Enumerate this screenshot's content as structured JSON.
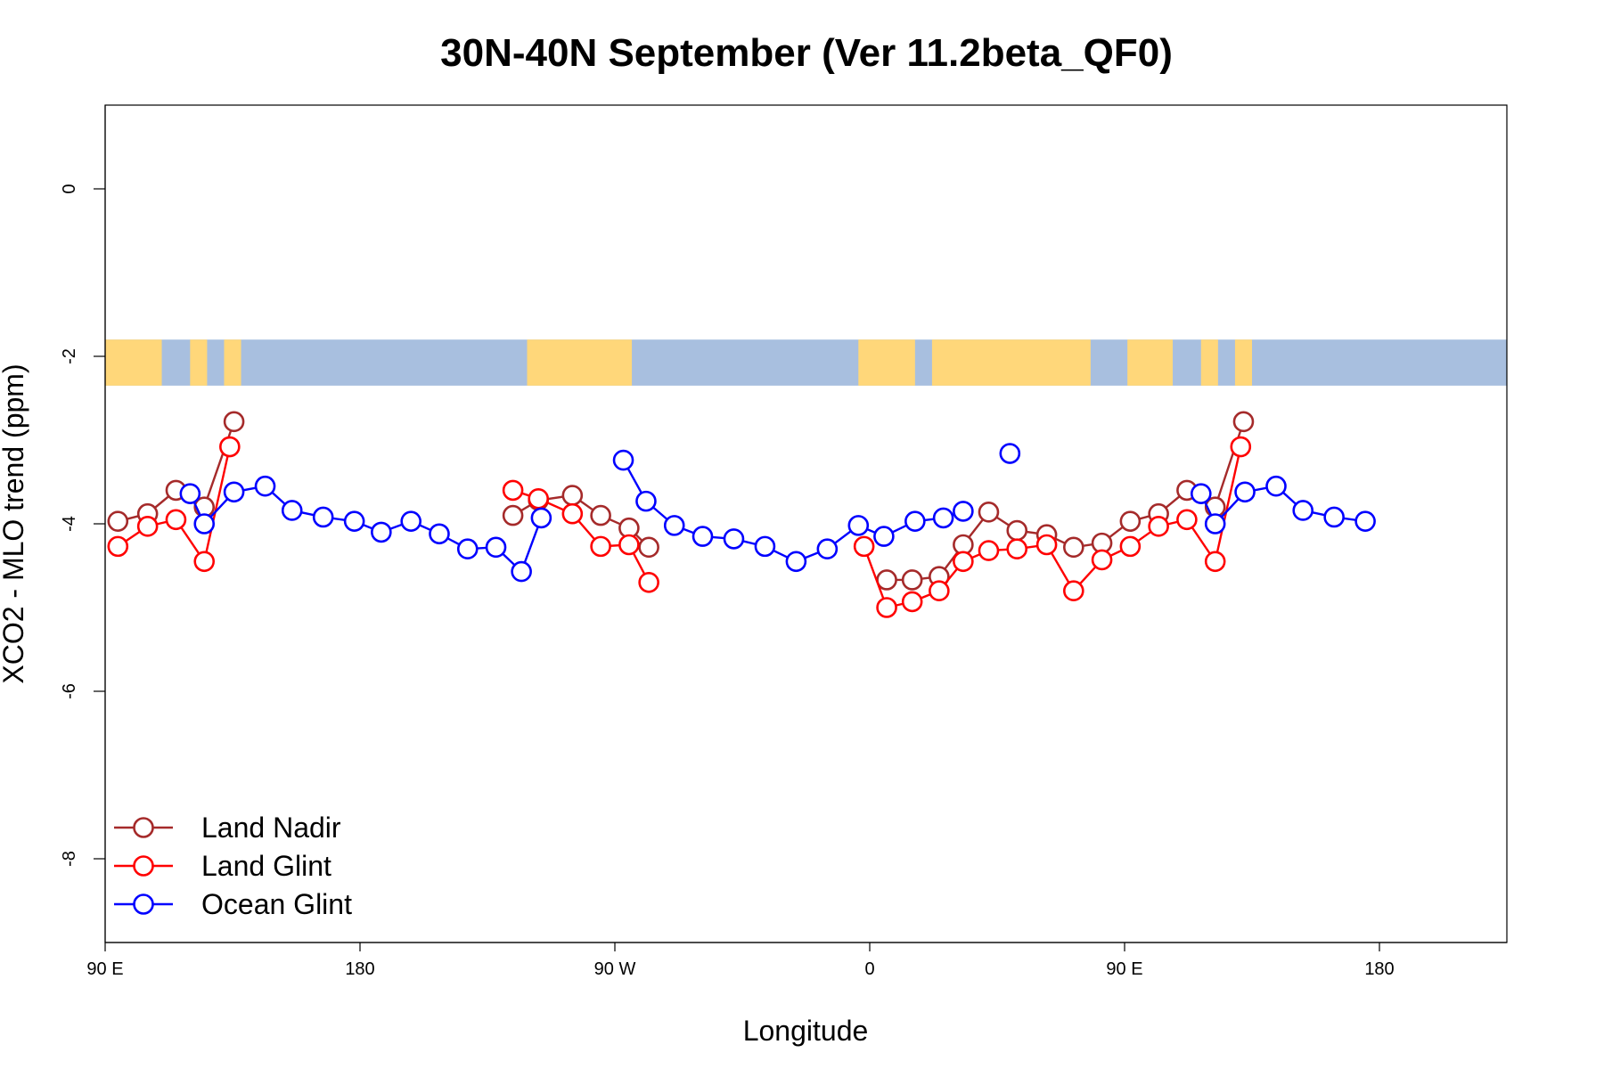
{
  "chart_data": {
    "type": "line",
    "title": "30N-40N September (Ver 11.2beta_QF0)",
    "xlabel": "Longitude",
    "ylabel": "XCO2 - MLO trend (ppm)",
    "xlim": [
      90,
      585
    ],
    "ylim": [
      -9.0,
      1.0
    ],
    "x_ticks": [
      {
        "value": 90,
        "label": "90 E"
      },
      {
        "value": 180,
        "label": "180"
      },
      {
        "value": 270,
        "label": "90 W"
      },
      {
        "value": 360,
        "label": "0"
      },
      {
        "value": 450,
        "label": "90 E"
      },
      {
        "value": 540,
        "label": "180"
      }
    ],
    "y_ticks": [
      {
        "value": 0,
        "label": "0"
      },
      {
        "value": -2,
        "label": "-2"
      },
      {
        "value": -4,
        "label": "-4"
      },
      {
        "value": -6,
        "label": "-6"
      },
      {
        "value": -8,
        "label": "-8"
      }
    ],
    "map_strip": {
      "description": "world map strip 30N-40N",
      "y_top": -1.8,
      "y_bottom": -2.35,
      "land_color": "#FFD77A",
      "ocean_color": "#A8BFDF"
    },
    "legend_position": "bottom-left",
    "series": [
      {
        "name": "Land Nadir",
        "color": "#A52A2A",
        "segments": [
          [
            [
              94.5,
              -3.97
            ],
            [
              105,
              -3.88
            ],
            [
              115,
              -3.6
            ],
            [
              125,
              -3.8
            ],
            [
              135.5,
              -2.78
            ]
          ],
          [
            [
              234,
              -3.9
            ],
            [
              243,
              -3.72
            ],
            [
              255,
              -3.66
            ],
            [
              265,
              -3.9
            ],
            [
              275,
              -4.05
            ],
            [
              282,
              -4.28
            ]
          ],
          [
            [
              366,
              -4.67
            ],
            [
              375,
              -4.67
            ],
            [
              384.5,
              -4.63
            ],
            [
              393,
              -4.25
            ],
            [
              402,
              -3.86
            ],
            [
              412,
              -4.08
            ],
            [
              422.5,
              -4.13
            ],
            [
              432,
              -4.28
            ],
            [
              442,
              -4.23
            ],
            [
              452,
              -3.97
            ],
            [
              462,
              -3.88
            ],
            [
              472,
              -3.6
            ],
            [
              482,
              -3.8
            ],
            [
              492,
              -2.78
            ]
          ]
        ]
      },
      {
        "name": "Land Glint",
        "color": "#FF0000",
        "segments": [
          [
            [
              94.5,
              -4.27
            ],
            [
              105,
              -4.03
            ],
            [
              115,
              -3.95
            ],
            [
              125,
              -4.45
            ],
            [
              134,
              -3.08
            ]
          ],
          [
            [
              234,
              -3.6
            ],
            [
              243,
              -3.7
            ],
            [
              255,
              -3.88
            ],
            [
              265,
              -4.27
            ],
            [
              275,
              -4.25
            ],
            [
              282,
              -4.7
            ]
          ],
          [
            [
              358,
              -4.27
            ],
            [
              366,
              -5.0
            ],
            [
              375,
              -4.93
            ],
            [
              384.5,
              -4.8
            ],
            [
              393,
              -4.45
            ],
            [
              402,
              -4.32
            ],
            [
              412,
              -4.3
            ],
            [
              422.5,
              -4.25
            ],
            [
              432,
              -4.8
            ],
            [
              442,
              -4.43
            ],
            [
              452,
              -4.27
            ],
            [
              462,
              -4.03
            ],
            [
              472,
              -3.95
            ],
            [
              482,
              -4.45
            ],
            [
              491,
              -3.08
            ]
          ]
        ]
      },
      {
        "name": "Ocean Glint",
        "color": "#0000FF",
        "segments": [
          [
            [
              120,
              -3.64
            ],
            [
              125,
              -4.0
            ],
            [
              135.5,
              -3.62
            ],
            [
              146.5,
              -3.55
            ],
            [
              156,
              -3.84
            ],
            [
              167,
              -3.92
            ],
            [
              178,
              -3.97
            ],
            [
              187.5,
              -4.1
            ],
            [
              198,
              -3.97
            ],
            [
              208,
              -4.12
            ],
            [
              218,
              -4.3
            ],
            [
              228,
              -4.28
            ],
            [
              237,
              -4.57
            ],
            [
              244,
              -3.93
            ]
          ],
          [
            [
              273,
              -3.24
            ],
            [
              281,
              -3.73
            ],
            [
              291,
              -4.02
            ],
            [
              301,
              -4.15
            ],
            [
              312,
              -4.18
            ],
            [
              323,
              -4.27
            ],
            [
              334,
              -4.45
            ],
            [
              345,
              -4.3
            ],
            [
              356,
              -4.02
            ],
            [
              365,
              -4.15
            ],
            [
              376,
              -3.97
            ],
            [
              386,
              -3.93
            ],
            [
              393,
              -3.85
            ]
          ],
          [
            [
              409.5,
              -3.16
            ]
          ],
          [
            [
              477,
              -3.64
            ],
            [
              482,
              -4.0
            ],
            [
              492.5,
              -3.62
            ],
            [
              503.5,
              -3.55
            ],
            [
              513,
              -3.84
            ],
            [
              524,
              -3.92
            ],
            [
              535,
              -3.97
            ]
          ]
        ]
      }
    ]
  }
}
